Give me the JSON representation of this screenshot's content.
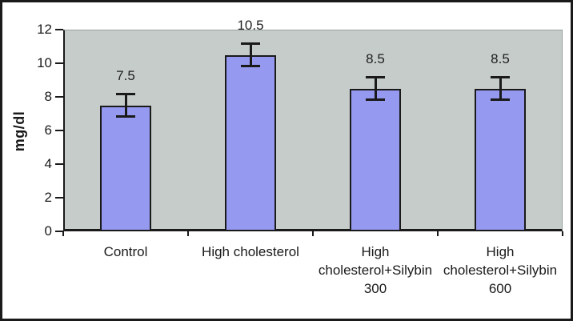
{
  "chart_data": {
    "type": "bar",
    "title": "",
    "ylabel": "mg/dl",
    "xlabel": "",
    "ylim": [
      0,
      12
    ],
    "ytick_step": 2,
    "yticks": [
      0,
      2,
      4,
      6,
      8,
      10,
      12
    ],
    "categories": [
      "Control",
      "High cholesterol",
      "High cholesterol+Silybin 300",
      "High cholesterol+Silybin 600"
    ],
    "category_display_lines": [
      [
        "Control"
      ],
      [
        "High cholesterol"
      ],
      [
        "High",
        "cholesterol+Silybin",
        "300"
      ],
      [
        "High",
        "cholesterol+Silybin",
        "600"
      ]
    ],
    "values": [
      7.5,
      10.5,
      8.5,
      8.5
    ],
    "data_labels": [
      "7.5",
      "10.5",
      "8.5",
      "8.5"
    ],
    "error_bar_plus_minus": 0.7,
    "legend": "none",
    "grid": "off",
    "colors": {
      "bar_fill": "#9699F0",
      "bar_border": "#1A1A1A",
      "plot_background": "#C5CCCA",
      "axis": "#1A1A1A",
      "frame_border": "#1A1A1A",
      "page_background": "#FFFFFF",
      "text": "#1A1A1A"
    }
  }
}
